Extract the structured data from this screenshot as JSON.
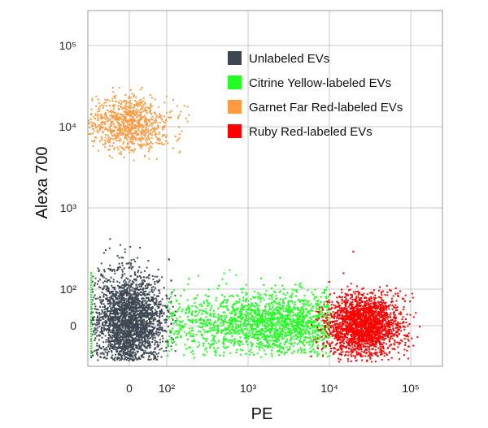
{
  "chart_data": {
    "type": "scatter",
    "title": "",
    "xlabel": "PE",
    "ylabel": "Alexa 700",
    "scale": "biexponential",
    "grid": true,
    "legend_position": "top-right",
    "x_ticks": [
      {
        "value": 0,
        "label": "0"
      },
      {
        "value": 100,
        "label": "10²"
      },
      {
        "value": 1000,
        "label": "10³"
      },
      {
        "value": 10000,
        "label": "10⁴"
      },
      {
        "value": 100000,
        "label": "10⁵"
      }
    ],
    "y_ticks": [
      {
        "value": 0,
        "label": "0"
      },
      {
        "value": 100,
        "label": "10²"
      },
      {
        "value": 1000,
        "label": "10³"
      },
      {
        "value": 10000,
        "label": "10⁴"
      },
      {
        "value": 100000,
        "label": "10⁵"
      }
    ],
    "series": [
      {
        "name": "Unlabeled EVs",
        "color": "#3d4752",
        "center": [
          0,
          0
        ],
        "spread": "near zero on both axes",
        "count": 2600
      },
      {
        "name": "Citrine Yellow-labeled EVs",
        "color": "#22ff22",
        "center": [
          2000,
          0
        ],
        "spread": "PE 10² to 10⁴, Alexa 700 near 0",
        "count": 3000
      },
      {
        "name": "Garnet Far Red-labeled EVs",
        "color": "#ff9a40",
        "center": [
          0,
          10000
        ],
        "spread": "PE near 0, Alexa 700 around 10⁴",
        "count": 900
      },
      {
        "name": "Ruby Red-labeled EVs",
        "color": "#ff0000",
        "center": [
          30000,
          0
        ],
        "spread": "PE around 10⁴ to 10⁵, Alexa 700 near 0",
        "count": 2200
      }
    ]
  }
}
